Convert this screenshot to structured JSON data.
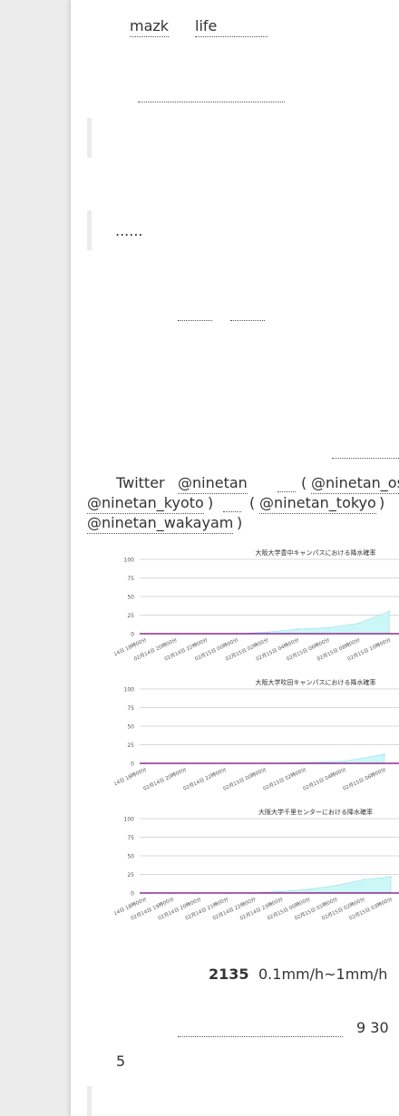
{
  "intro_links": [
    "mazk",
    "life"
  ],
  "quote2": "......",
  "twitter": {
    "lead": "Twitter",
    "accounts": [
      "@ninetan",
      "@ninetan_os",
      "@ninetan_kyoto",
      "@ninetan_tokyo",
      "@ninetan_wakayam"
    ]
  },
  "charts": [
    {
      "title": "大阪大学豊中キャンパスにおける降水確率"
    },
    {
      "title": "大阪大学吹田キャンパスにおける降水確率"
    },
    {
      "title": "大阪大学千里センターにおける降水確率"
    }
  ],
  "chart_data": [
    {
      "type": "area",
      "title": "大阪大学豊中キャンパスにおける降水確率",
      "x": [
        "02月14日 18時00分",
        "02月14日 20時00分",
        "02月14日 22時00分",
        "02月15日 00時00分",
        "02月15日 02時00分",
        "02月15日 04時00分",
        "02月15日 06時00分",
        "02月15日 08時00分",
        "02月15日 10時00分"
      ],
      "yticks": [
        0,
        25,
        50,
        75,
        100
      ],
      "ylim": [
        0,
        100
      ],
      "values": [
        0,
        0,
        0,
        0,
        2,
        6,
        8,
        14,
        30
      ],
      "grid": true,
      "legend": "none"
    },
    {
      "type": "area",
      "title": "大阪大学吹田キャンパスにおける降水確率",
      "x": [
        "02月14日 18時00分",
        "02月14日 20時00分",
        "02月14日 22時00分",
        "02月15日 00時00分",
        "02月15日 02時00分",
        "02月15日 04時00分",
        "02月15日 06時00分"
      ],
      "yticks": [
        0,
        25,
        50,
        75,
        100
      ],
      "ylim": [
        0,
        100
      ],
      "values": [
        0,
        0,
        0,
        0,
        1,
        3,
        12
      ],
      "grid": true,
      "legend": "none"
    },
    {
      "type": "area",
      "title": "大阪大学千里センターにおける降水確率",
      "x": [
        "02月14日 18時00分",
        "02月14日 19時00分",
        "02月14日 20時00分",
        "02月14日 21時00分",
        "02月14日 22時00分",
        "02月14日 23時00分",
        "02月15日 00時00分",
        "02月15日 01時00分",
        "02月15日 02時00分",
        "02月15日 03時00分"
      ],
      "yticks": [
        0,
        25,
        50,
        75,
        100
      ],
      "ylim": [
        0,
        100
      ],
      "values": [
        0,
        0,
        0,
        0,
        0,
        2,
        5,
        10,
        18,
        22
      ],
      "grid": true,
      "legend": "none"
    }
  ],
  "stat": {
    "number": "2135",
    "range": "0.1mm/h~1mm/h"
  },
  "date_text": "9 30",
  "count_text": "5",
  "colors": {
    "area": "#ccf7f7",
    "axis": "#7a007a",
    "grid": "#cccccc"
  }
}
